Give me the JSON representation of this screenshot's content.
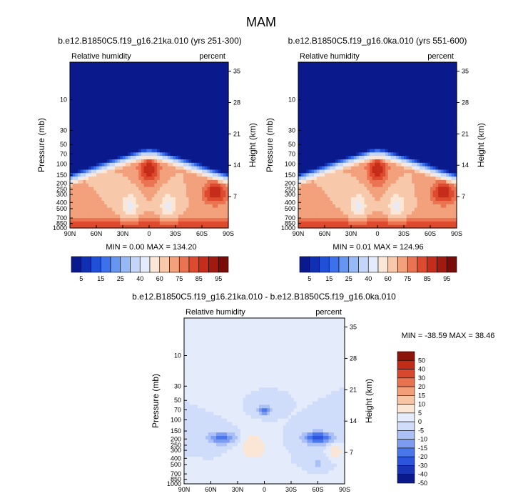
{
  "title": "MAM",
  "palette": {
    "abs": [
      "#0a1a8c",
      "#1030b4",
      "#2050d8",
      "#3c70ec",
      "#6496f2",
      "#96b9f6",
      "#c3d6fa",
      "#e4ecfb",
      "#fbe7d8",
      "#f8c8aa",
      "#f2a17c",
      "#ea7452",
      "#de4a2e",
      "#c62c1a",
      "#a01a10",
      "#7a0c08"
    ],
    "diff": [
      "#0a1a8c",
      "#1a34b8",
      "#2a55dc",
      "#4a76ec",
      "#7c9cf2",
      "#aac0f6",
      "#cfdcfa",
      "#e4ecfb",
      "#fbe6d6",
      "#f8c4a6",
      "#f29e78",
      "#e8714e",
      "#d9482c",
      "#c02c18",
      "#8c1408"
    ]
  },
  "chart_data": [
    {
      "type": "heatmap",
      "title": "b.e12.B1850C5.f19_g16.21ka.010 (yrs 251-300)",
      "left_label": "Relative humidity",
      "right_label": "percent",
      "xlabel": "",
      "ylabel": "Pressure (mb)",
      "y2label": "Height (km)",
      "x_ticks": [
        "90N",
        "60N",
        "30N",
        "0",
        "30S",
        "60S",
        "90S"
      ],
      "y_ticks": [
        "10",
        "30",
        "50",
        "70",
        "100",
        "150",
        "200",
        "250",
        "300",
        "400",
        "500",
        "700",
        "850",
        "1000"
      ],
      "y2_ticks": [
        "35",
        "28",
        "21",
        "14",
        "7"
      ],
      "stats": "MIN =   0.00  MAX = 134.20",
      "colorbar_labels": [
        "5",
        "15",
        "25",
        "40",
        "60",
        "75",
        "85",
        "95"
      ],
      "colorbar_levels": [
        5,
        10,
        15,
        20,
        25,
        30,
        40,
        50,
        60,
        70,
        75,
        80,
        85,
        90,
        95
      ],
      "variant": 0
    },
    {
      "type": "heatmap",
      "title": "b.e12.B1850C5.f19_g16.0ka.010 (yrs 551-600)",
      "left_label": "Relative humidity",
      "right_label": "percent",
      "xlabel": "",
      "ylabel": "Pressure (mb)",
      "y2label": "Height (km)",
      "x_ticks": [
        "90N",
        "60N",
        "30N",
        "0",
        "30S",
        "60S",
        "90S"
      ],
      "y_ticks": [
        "10",
        "30",
        "50",
        "70",
        "100",
        "150",
        "200",
        "250",
        "300",
        "400",
        "500",
        "700",
        "850",
        "1000"
      ],
      "y2_ticks": [
        "35",
        "28",
        "21",
        "14",
        "7"
      ],
      "stats": "MIN =   0.01  MAX = 124.96",
      "colorbar_labels": [
        "5",
        "15",
        "25",
        "40",
        "60",
        "75",
        "85",
        "95"
      ],
      "colorbar_levels": [
        5,
        10,
        15,
        20,
        25,
        30,
        40,
        50,
        60,
        70,
        75,
        80,
        85,
        90,
        95
      ],
      "variant": 1
    },
    {
      "type": "heatmap",
      "title": "b.e12.B1850C5.f19_g16.21ka.010 - b.e12.B1850C5.f19_g16.0ka.010",
      "left_label": "Relative humidity",
      "right_label": "percent",
      "xlabel": "",
      "ylabel": "Pressure (mb)",
      "y2label": "Height (km)",
      "x_ticks": [
        "90N",
        "60N",
        "30N",
        "0",
        "30S",
        "60S",
        "90S"
      ],
      "y_ticks": [
        "10",
        "30",
        "50",
        "70",
        "100",
        "150",
        "200",
        "250",
        "300",
        "400",
        "500",
        "700",
        "850",
        "1000"
      ],
      "y2_ticks": [
        "35",
        "28",
        "21",
        "14",
        "7"
      ],
      "stats": "MIN = -38.59  MAX =  38.46",
      "colorbar_labels": [
        "50",
        "40",
        "30",
        "20",
        "15",
        "10",
        "5",
        "0",
        "-5",
        "-10",
        "-15",
        "-20",
        "-30",
        "-40",
        "-50"
      ],
      "colorbar_levels": [
        50,
        40,
        30,
        20,
        15,
        10,
        5,
        0,
        -5,
        -10,
        -15,
        -20,
        -30,
        -40,
        -50
      ]
    }
  ]
}
